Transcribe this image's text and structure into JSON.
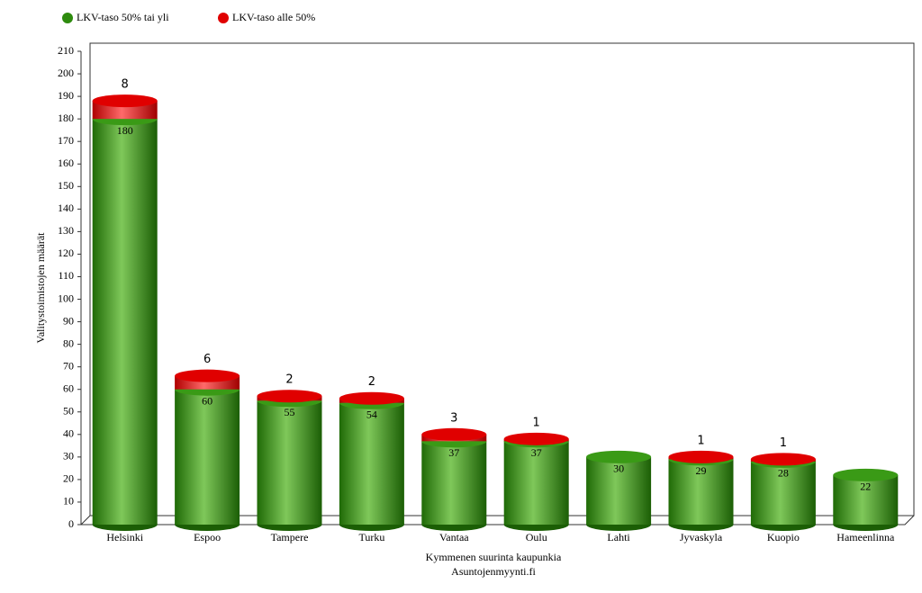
{
  "chart_data": {
    "type": "bar",
    "stacked": true,
    "title": "Kymmenen suurinta kaupunkia",
    "subtitle": "Asuntojenmyynti.fi",
    "y_label": "Valitystoimistojen määrät",
    "categories": [
      "Helsinki",
      "Espoo",
      "Tampere",
      "Turku",
      "Vantaa",
      "Oulu",
      "Lahti",
      "Jyvaskyla",
      "Kuopio",
      "Hameenlinna"
    ],
    "series": [
      {
        "name": "LKV-taso 50% tai yli",
        "color": "#2e8b0e",
        "values": [
          180,
          60,
          55,
          54,
          37,
          37,
          30,
          29,
          28,
          22
        ]
      },
      {
        "name": "LKV-taso alle 50%",
        "color": "#e00000",
        "values": [
          8,
          6,
          2,
          2,
          3,
          1,
          null,
          1,
          1,
          null
        ]
      }
    ],
    "ylim": [
      0,
      210
    ],
    "yticks": [
      0,
      10,
      20,
      30,
      40,
      50,
      60,
      70,
      80,
      90,
      100,
      110,
      120,
      130,
      140,
      150,
      160,
      170,
      180,
      190,
      200,
      210
    ],
    "legend": "top-left"
  }
}
